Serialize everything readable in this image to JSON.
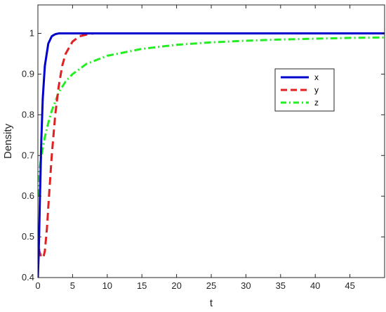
{
  "chart_data": {
    "type": "line",
    "title": "",
    "xlabel": "t",
    "ylabel": "Density",
    "xlim": [
      0,
      50
    ],
    "ylim": [
      0.4,
      1.07
    ],
    "grid": false,
    "legend_position": "upper-right-inset",
    "xticks": [
      "0",
      "5",
      "10",
      "15",
      "20",
      "25",
      "30",
      "35",
      "40",
      "45"
    ],
    "yticks": [
      "0.4",
      "0.5",
      "0.6",
      "0.7",
      "0.8",
      "0.9",
      "1"
    ],
    "series": [
      {
        "name": "x",
        "color": "#0000cc",
        "style": "solid",
        "points": [
          [
            0,
            0.4
          ],
          [
            0.1,
            0.45
          ],
          [
            0.2,
            0.52
          ],
          [
            0.3,
            0.6
          ],
          [
            0.4,
            0.67
          ],
          [
            0.5,
            0.74
          ],
          [
            0.7,
            0.84
          ],
          [
            1,
            0.92
          ],
          [
            1.5,
            0.975
          ],
          [
            2,
            0.993
          ],
          [
            2.5,
            0.998
          ],
          [
            3,
            1
          ],
          [
            5,
            1
          ],
          [
            10,
            1
          ],
          [
            20,
            1
          ],
          [
            30,
            1
          ],
          [
            40,
            1
          ],
          [
            50,
            1
          ]
        ]
      },
      {
        "name": "y",
        "color": "#dd2222",
        "style": "dashed",
        "points": [
          [
            0,
            0.5
          ],
          [
            0.2,
            0.465
          ],
          [
            0.5,
            0.45
          ],
          [
            0.8,
            0.45
          ],
          [
            1,
            0.465
          ],
          [
            1.3,
            0.52
          ],
          [
            1.6,
            0.6
          ],
          [
            2,
            0.7
          ],
          [
            2.5,
            0.8
          ],
          [
            3,
            0.87
          ],
          [
            3.5,
            0.92
          ],
          [
            4,
            0.95
          ],
          [
            5,
            0.98
          ],
          [
            6,
            0.993
          ],
          [
            7,
            0.997
          ],
          [
            8,
            1
          ],
          [
            10,
            1
          ],
          [
            20,
            1
          ],
          [
            30,
            1
          ],
          [
            40,
            1
          ],
          [
            50,
            1
          ]
        ]
      },
      {
        "name": "z",
        "color": "#22ee22",
        "style": "dash-dot",
        "points": [
          [
            0,
            0.6
          ],
          [
            0.2,
            0.66
          ],
          [
            0.5,
            0.7
          ],
          [
            1,
            0.745
          ],
          [
            1.5,
            0.78
          ],
          [
            2,
            0.81
          ],
          [
            3,
            0.855
          ],
          [
            4,
            0.882
          ],
          [
            5,
            0.9
          ],
          [
            7,
            0.925
          ],
          [
            10,
            0.945
          ],
          [
            15,
            0.962
          ],
          [
            20,
            0.972
          ],
          [
            25,
            0.978
          ],
          [
            30,
            0.982
          ],
          [
            35,
            0.985
          ],
          [
            40,
            0.987
          ],
          [
            45,
            0.989
          ],
          [
            50,
            0.99
          ]
        ]
      }
    ]
  }
}
